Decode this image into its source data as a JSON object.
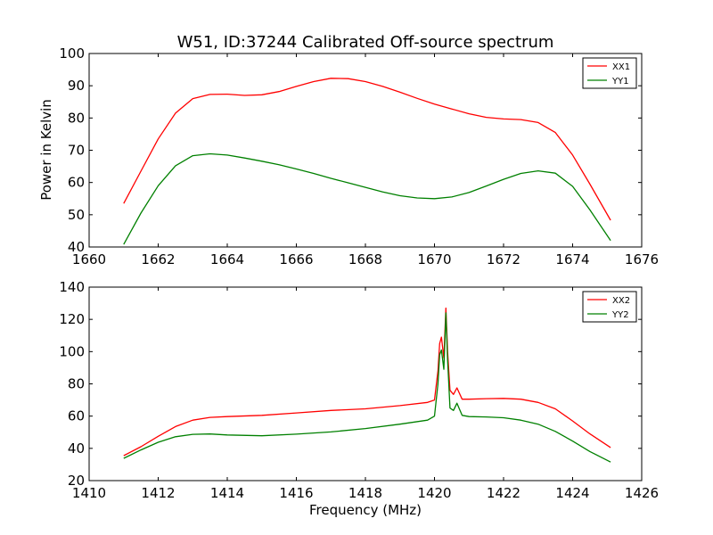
{
  "figure": {
    "title": "W51, ID:37244 Calibrated Off-source spectrum",
    "ylabel": "Power in Kelvin",
    "xlabel": "Frequency (MHz)"
  },
  "chart_data": [
    {
      "type": "line",
      "title": "W51, ID:37244 Calibrated Off-source spectrum",
      "xlabel": "",
      "ylabel": "Power in Kelvin",
      "xlim": [
        1660,
        1676
      ],
      "ylim": [
        40,
        100
      ],
      "xticks": [
        1660,
        1662,
        1664,
        1666,
        1668,
        1670,
        1672,
        1674,
        1676
      ],
      "yticks": [
        40,
        50,
        60,
        70,
        80,
        90,
        100
      ],
      "grid": false,
      "legend": "top-right",
      "series": [
        {
          "name": "XX1",
          "color": "#ff0000",
          "x": [
            1661.0,
            1661.5,
            1662.0,
            1662.5,
            1663.0,
            1663.5,
            1664.0,
            1664.5,
            1665.0,
            1665.5,
            1666.0,
            1666.5,
            1667.0,
            1667.5,
            1668.0,
            1668.5,
            1669.0,
            1669.5,
            1670.0,
            1670.5,
            1671.0,
            1671.5,
            1672.0,
            1672.5,
            1673.0,
            1673.5,
            1674.0,
            1674.5,
            1675.1
          ],
          "y": [
            53.5,
            63.5,
            73.5,
            81.5,
            86.0,
            87.3,
            87.4,
            87.0,
            87.2,
            88.2,
            89.8,
            91.3,
            92.3,
            92.2,
            91.3,
            89.8,
            88.0,
            86.1,
            84.3,
            82.8,
            81.3,
            80.2,
            79.7,
            79.5,
            78.6,
            75.5,
            68.5,
            59.5,
            48.3
          ]
        },
        {
          "name": "YY1",
          "color": "#008000",
          "x": [
            1661.0,
            1661.5,
            1662.0,
            1662.5,
            1663.0,
            1663.5,
            1664.0,
            1664.5,
            1665.0,
            1665.5,
            1666.0,
            1666.5,
            1667.0,
            1667.5,
            1668.0,
            1668.5,
            1669.0,
            1669.5,
            1670.0,
            1670.5,
            1671.0,
            1671.5,
            1672.0,
            1672.5,
            1673.0,
            1673.5,
            1674.0,
            1674.5,
            1675.1
          ],
          "y": [
            40.8,
            50.5,
            59.0,
            65.2,
            68.3,
            68.9,
            68.5,
            67.6,
            66.6,
            65.5,
            64.2,
            62.8,
            61.3,
            59.9,
            58.5,
            57.1,
            55.9,
            55.2,
            55.0,
            55.5,
            56.9,
            58.9,
            61.0,
            62.8,
            63.6,
            62.9,
            58.8,
            51.5,
            42.0
          ]
        }
      ]
    },
    {
      "type": "line",
      "title": "",
      "xlabel": "Frequency (MHz)",
      "ylabel": "",
      "xlim": [
        1410,
        1426
      ],
      "ylim": [
        20,
        140
      ],
      "xticks": [
        1410,
        1412,
        1414,
        1416,
        1418,
        1420,
        1422,
        1424,
        1426
      ],
      "yticks": [
        20,
        40,
        60,
        80,
        100,
        120,
        140
      ],
      "grid": false,
      "legend": "top-right",
      "series": [
        {
          "name": "XX2",
          "color": "#ff0000",
          "x": [
            1411.0,
            1411.5,
            1412.0,
            1412.5,
            1413.0,
            1413.5,
            1414.0,
            1415.0,
            1416.0,
            1417.0,
            1418.0,
            1419.0,
            1419.8,
            1420.0,
            1420.1,
            1420.15,
            1420.2,
            1420.27,
            1420.33,
            1420.38,
            1420.45,
            1420.55,
            1420.65,
            1420.8,
            1421.0,
            1421.5,
            1422.0,
            1422.5,
            1423.0,
            1423.5,
            1424.0,
            1424.5,
            1425.1
          ],
          "y": [
            35.5,
            41.0,
            47.5,
            53.5,
            57.5,
            59.2,
            59.7,
            60.5,
            62.0,
            63.5,
            64.5,
            66.5,
            68.5,
            70.0,
            88.0,
            105.0,
            109.0,
            96.0,
            127.0,
            100.0,
            76.0,
            73.5,
            77.5,
            70.5,
            70.5,
            70.8,
            71.0,
            70.5,
            68.5,
            64.5,
            57.0,
            49.0,
            40.5
          ]
        },
        {
          "name": "YY2",
          "color": "#008000",
          "x": [
            1411.0,
            1411.5,
            1412.0,
            1412.5,
            1413.0,
            1413.5,
            1414.0,
            1415.0,
            1416.0,
            1417.0,
            1418.0,
            1419.0,
            1419.8,
            1420.0,
            1420.1,
            1420.15,
            1420.2,
            1420.27,
            1420.33,
            1420.38,
            1420.45,
            1420.55,
            1420.65,
            1420.8,
            1421.0,
            1421.5,
            1422.0,
            1422.5,
            1423.0,
            1423.5,
            1424.0,
            1424.5,
            1425.1
          ],
          "y": [
            33.8,
            39.0,
            43.8,
            47.2,
            48.7,
            48.9,
            48.3,
            47.8,
            48.8,
            50.2,
            52.3,
            55.0,
            57.5,
            60.0,
            80.0,
            98.0,
            101.0,
            89.0,
            124.0,
            95.0,
            65.0,
            63.5,
            68.0,
            60.5,
            59.7,
            59.5,
            59.0,
            57.5,
            55.0,
            50.5,
            44.5,
            38.0,
            31.5
          ]
        }
      ]
    }
  ]
}
